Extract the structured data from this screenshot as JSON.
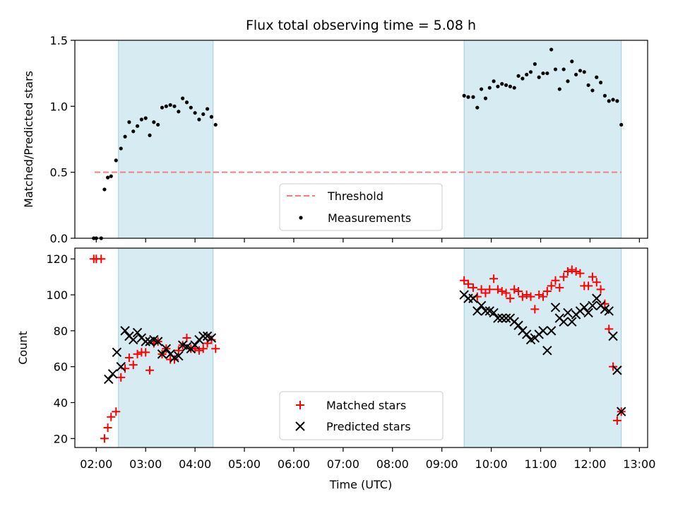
{
  "chart_data": [
    {
      "type": "scatter",
      "title": "Flux total observing time = 5.08 h",
      "xlabel": "",
      "ylabel": "Matched/Predicted stars",
      "xlim": [
        "01:34",
        "13:10"
      ],
      "ylim": [
        0,
        1.5
      ],
      "yticks": [
        0.0,
        0.5,
        1.0,
        1.5
      ],
      "ytick_labels": [
        "0.0",
        "0.5",
        "1.0",
        "1.5"
      ],
      "shaded_windows": [
        [
          "02:27",
          "04:22"
        ],
        [
          "09:27",
          "12:38"
        ]
      ],
      "threshold": {
        "name": "Threshold",
        "value": 0.5,
        "x_range": [
          "01:58",
          "12:38"
        ],
        "color": "#f08080"
      },
      "legend": {
        "placement": "lower-center",
        "entries": [
          "Threshold",
          "Measurements"
        ]
      },
      "series": [
        {
          "name": "Measurements",
          "color": "#000000",
          "marker": "dot",
          "x": [
            "01:57",
            "02:00",
            "02:06",
            "02:10",
            "02:14",
            "02:18",
            "02:24",
            "02:30",
            "02:35",
            "02:40",
            "02:45",
            "02:50",
            "02:55",
            "03:00",
            "03:05",
            "03:10",
            "03:15",
            "03:20",
            "03:25",
            "03:30",
            "03:35",
            "03:40",
            "03:45",
            "03:50",
            "03:55",
            "04:00",
            "04:05",
            "04:10",
            "04:15",
            "04:20",
            "04:25",
            "09:27",
            "09:32",
            "09:38",
            "09:43",
            "09:48",
            "09:53",
            "09:58",
            "10:03",
            "10:08",
            "10:13",
            "10:18",
            "10:23",
            "10:28",
            "10:33",
            "10:38",
            "10:43",
            "10:48",
            "10:53",
            "10:58",
            "11:03",
            "11:08",
            "11:13",
            "11:18",
            "11:23",
            "11:28",
            "11:33",
            "11:38",
            "11:43",
            "11:48",
            "11:53",
            "11:58",
            "12:03",
            "12:08",
            "12:13",
            "12:18",
            "12:23",
            "12:28",
            "12:33",
            "12:38"
          ],
          "y": [
            0.0,
            0.0,
            0.0,
            0.37,
            0.46,
            0.47,
            0.59,
            0.68,
            0.77,
            0.88,
            0.81,
            0.85,
            0.9,
            0.91,
            0.78,
            0.88,
            0.86,
            0.99,
            1.0,
            1.01,
            1.0,
            0.96,
            1.06,
            1.03,
            0.99,
            0.95,
            0.9,
            0.94,
            0.98,
            0.92,
            0.86,
            1.08,
            1.07,
            1.07,
            0.99,
            1.13,
            1.06,
            1.14,
            1.19,
            1.15,
            1.17,
            1.16,
            1.15,
            1.14,
            1.23,
            1.21,
            1.24,
            1.26,
            1.32,
            1.22,
            1.25,
            1.25,
            1.43,
            1.28,
            1.13,
            1.28,
            1.19,
            1.34,
            1.24,
            1.27,
            1.26,
            1.16,
            1.12,
            1.22,
            1.18,
            1.08,
            1.04,
            1.05,
            1.04,
            0.86
          ]
        }
      ]
    },
    {
      "type": "scatter",
      "title": "",
      "xlabel": "Time (UTC)",
      "ylabel": "Count",
      "xlim": [
        "01:34",
        "13:10"
      ],
      "ylim": [
        15,
        126
      ],
      "yticks": [
        20,
        40,
        60,
        80,
        100,
        120
      ],
      "xticks": [
        "02:00",
        "03:00",
        "04:00",
        "05:00",
        "06:00",
        "07:00",
        "08:00",
        "09:00",
        "10:00",
        "11:00",
        "12:00",
        "13:00"
      ],
      "shaded_windows": [
        [
          "02:27",
          "04:22"
        ],
        [
          "09:27",
          "12:38"
        ]
      ],
      "legend": {
        "placement": "lower-center",
        "entries": [
          "Matched stars",
          "Predicted stars"
        ]
      },
      "series": [
        {
          "name": "Matched stars",
          "color": "#ff0000",
          "marker": "plus",
          "x": [
            "01:57",
            "02:00",
            "02:06",
            "02:10",
            "02:14",
            "02:18",
            "02:24",
            "02:30",
            "02:35",
            "02:40",
            "02:45",
            "02:50",
            "02:55",
            "03:00",
            "03:05",
            "03:10",
            "03:15",
            "03:20",
            "03:25",
            "03:30",
            "03:35",
            "03:40",
            "03:45",
            "03:50",
            "03:55",
            "04:00",
            "04:05",
            "04:10",
            "04:15",
            "04:20",
            "04:25",
            "09:27",
            "09:32",
            "09:38",
            "09:43",
            "09:48",
            "09:53",
            "09:58",
            "10:03",
            "10:08",
            "10:13",
            "10:18",
            "10:23",
            "10:28",
            "10:33",
            "10:38",
            "10:43",
            "10:48",
            "10:53",
            "10:58",
            "11:03",
            "11:08",
            "11:13",
            "11:18",
            "11:23",
            "11:28",
            "11:33",
            "11:38",
            "11:43",
            "11:48",
            "11:53",
            "11:58",
            "12:03",
            "12:08",
            "12:13",
            "12:18",
            "12:23",
            "12:28",
            "12:33",
            "12:38"
          ],
          "y": [
            120,
            120,
            120,
            20,
            26,
            32,
            35,
            54,
            59,
            65,
            61,
            67,
            68,
            68,
            58,
            73,
            74,
            67,
            70,
            64,
            64,
            69,
            72,
            76,
            70,
            70,
            69,
            70,
            73,
            75,
            70,
            108,
            106,
            104,
            99,
            103,
            101,
            103,
            109,
            103,
            102,
            101,
            98,
            103,
            102,
            99,
            100,
            99,
            92,
            100,
            99,
            102,
            105,
            108,
            104,
            110,
            113,
            114,
            113,
            112,
            105,
            105,
            110,
            107,
            103,
            95,
            81,
            60,
            30,
            35
          ]
        },
        {
          "name": "Predicted stars",
          "color": "#000000",
          "marker": "cross",
          "x": [
            "02:15",
            "02:20",
            "02:25",
            "02:30",
            "02:35",
            "02:40",
            "02:45",
            "02:50",
            "02:55",
            "03:00",
            "03:05",
            "03:10",
            "03:15",
            "03:20",
            "03:25",
            "03:30",
            "03:35",
            "03:40",
            "03:45",
            "03:50",
            "03:55",
            "04:00",
            "04:05",
            "04:10",
            "04:15",
            "04:20",
            "09:27",
            "09:32",
            "09:38",
            "09:43",
            "09:48",
            "09:53",
            "09:58",
            "10:03",
            "10:08",
            "10:13",
            "10:18",
            "10:23",
            "10:28",
            "10:33",
            "10:38",
            "10:43",
            "10:48",
            "10:53",
            "10:58",
            "11:03",
            "11:08",
            "11:13",
            "11:18",
            "11:23",
            "11:28",
            "11:33",
            "11:38",
            "11:43",
            "11:48",
            "11:53",
            "11:58",
            "12:03",
            "12:08",
            "12:13",
            "12:18",
            "12:23",
            "12:28",
            "12:33",
            "12:38"
          ],
          "y": [
            53,
            56,
            68,
            60,
            80,
            77,
            75,
            79,
            76,
            74,
            74,
            75,
            74,
            67,
            70,
            67,
            65,
            66,
            72,
            71,
            70,
            72,
            75,
            77,
            77,
            76,
            100,
            98,
            98,
            91,
            94,
            91,
            91,
            90,
            87,
            87,
            87,
            87,
            85,
            83,
            80,
            78,
            75,
            76,
            78,
            80,
            69,
            80,
            93,
            87,
            85,
            90,
            85,
            89,
            91,
            93,
            90,
            94,
            98,
            94,
            92,
            91,
            77,
            58,
            35
          ]
        }
      ]
    }
  ]
}
